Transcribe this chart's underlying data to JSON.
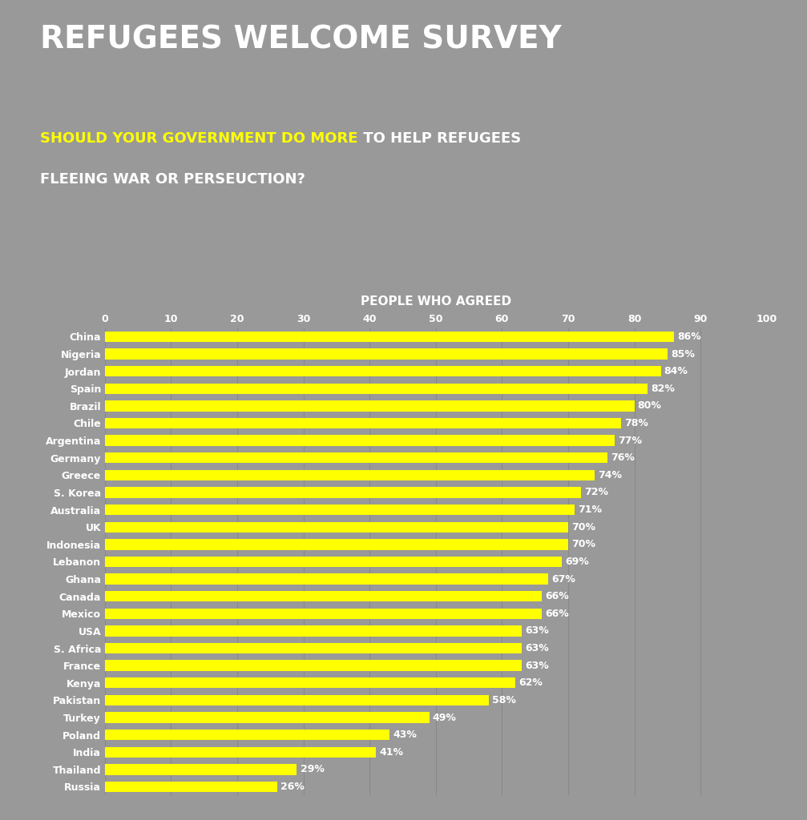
{
  "title": "REFUGEES WELCOME SURVEY",
  "subtitle_yellow": "SHOULD YOUR GOVERNMENT DO MORE",
  "subtitle_white": " TO HELP REFUGEES",
  "subtitle_line2": "FLEEING WAR OR PERSEUCTION?",
  "xlabel": "PEOPLE WHO AGREED",
  "background_color": "#999999",
  "bar_color": "#FFFF00",
  "text_color_white": "#FFFFFF",
  "text_color_yellow": "#FFFF00",
  "countries": [
    "China",
    "Nigeria",
    "Jordan",
    "Spain",
    "Brazil",
    "Chile",
    "Argentina",
    "Germany",
    "Greece",
    "S. Korea",
    "Australia",
    "UK",
    "Indonesia",
    "Lebanon",
    "Ghana",
    "Canada",
    "Mexico",
    "USA",
    "S. Africa",
    "France",
    "Kenya",
    "Pakistan",
    "Turkey",
    "Poland",
    "India",
    "Thailand",
    "Russia"
  ],
  "values": [
    86,
    85,
    84,
    82,
    80,
    78,
    77,
    76,
    74,
    72,
    71,
    70,
    70,
    69,
    67,
    66,
    66,
    63,
    63,
    63,
    62,
    58,
    49,
    43,
    41,
    29,
    26
  ],
  "xlim": [
    0,
    100
  ],
  "xticks": [
    0,
    10,
    20,
    30,
    40,
    50,
    60,
    70,
    80,
    90,
    100
  ],
  "title_fontsize": 28,
  "subtitle_fontsize": 13,
  "bar_label_fontsize": 9,
  "tick_fontsize": 9,
  "xlabel_fontsize": 11
}
